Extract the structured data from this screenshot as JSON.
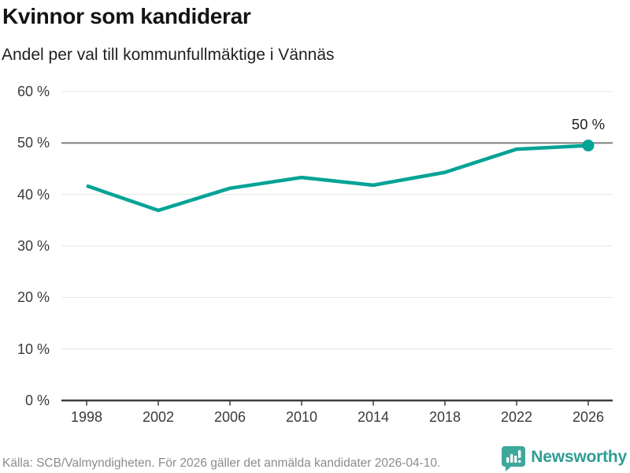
{
  "header": {
    "title": "Kvinnor som kandiderar",
    "subtitle": "Andel per val till kommunfullmäktige i Vännäs"
  },
  "chart_data": {
    "type": "line",
    "title": "Kvinnor som kandiderar",
    "subtitle": "Andel per val till kommunfullmäktige i Vännäs",
    "x": [
      1998,
      2002,
      2006,
      2010,
      2014,
      2018,
      2022,
      2026
    ],
    "x_tick_labels": [
      "1998",
      "2002",
      "2006",
      "2010",
      "2014",
      "2018",
      "2022",
      "2026"
    ],
    "values": [
      41.7,
      36.9,
      41.2,
      43.3,
      41.8,
      44.3,
      48.8,
      49.5
    ],
    "ylim": [
      0,
      60
    ],
    "y_ticks": [
      0,
      10,
      20,
      30,
      40,
      50,
      60
    ],
    "y_tick_labels": [
      "0 %",
      "10 %",
      "20 %",
      "30 %",
      "40 %",
      "50 %",
      "60 %"
    ],
    "reference_line_value": 50,
    "end_point_label": "50 %",
    "grid": true,
    "legend_position": "none",
    "colors": {
      "line": "#00a396",
      "grid": "#e4e4e4",
      "reference_line": "#7f7f7f",
      "axis": "#3d3d3d"
    }
  },
  "footer": {
    "source": "Källa: SCB/Valmyndigheten. För 2026 gäller det anmälda kandidater 2026-04-10.",
    "brand_name": "Newsworthy",
    "brand_color": "#2d9e93",
    "brand_logo_color": "#3ea89b",
    "brand_logo_icon": "bar-chart-speech-bubble-icon"
  }
}
